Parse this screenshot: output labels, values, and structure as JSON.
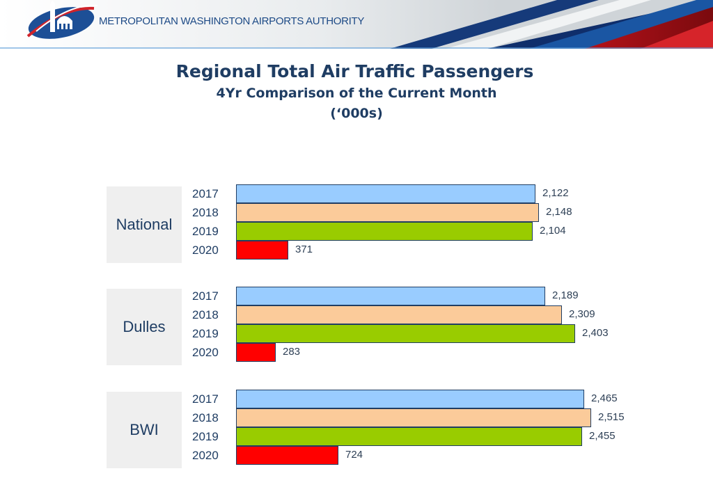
{
  "header": {
    "org_name": "METROPOLITAN WASHINGTON AIRPORTS AUTHORITY",
    "logo_icon": "mwaa-logo-icon",
    "colors": {
      "navy": "#0f2e6b",
      "blue": "#1a56a3",
      "red": "#c8151b"
    }
  },
  "chart_data": {
    "type": "bar",
    "orientation": "horizontal",
    "title": "Regional Total Air Traffic Passengers",
    "subtitle": "4Yr Comparison of the Current Month",
    "units": "(‘000s)",
    "xlim": [
      0,
      2600
    ],
    "grid": false,
    "series_names": [
      "2017",
      "2018",
      "2019",
      "2020"
    ],
    "series_colors": [
      "#99ccff",
      "#fbcb9a",
      "#99cc00",
      "#ff0000"
    ],
    "groups": [
      {
        "name": "National",
        "years": [
          "2017",
          "2018",
          "2019",
          "2020"
        ],
        "values": [
          2122,
          2148,
          2104,
          371
        ],
        "labels": [
          "2,122",
          "2,148",
          "2,104",
          "371"
        ]
      },
      {
        "name": "Dulles",
        "years": [
          "2017",
          "2018",
          "2019",
          "2020"
        ],
        "values": [
          2189,
          2309,
          2403,
          283
        ],
        "labels": [
          "2,189",
          "2,309",
          "2,403",
          "283"
        ]
      },
      {
        "name": "BWI",
        "years": [
          "2017",
          "2018",
          "2019",
          "2020"
        ],
        "values": [
          2465,
          2515,
          2455,
          724
        ],
        "labels": [
          "2,465",
          "2,515",
          "2,455",
          "724"
        ]
      }
    ]
  }
}
